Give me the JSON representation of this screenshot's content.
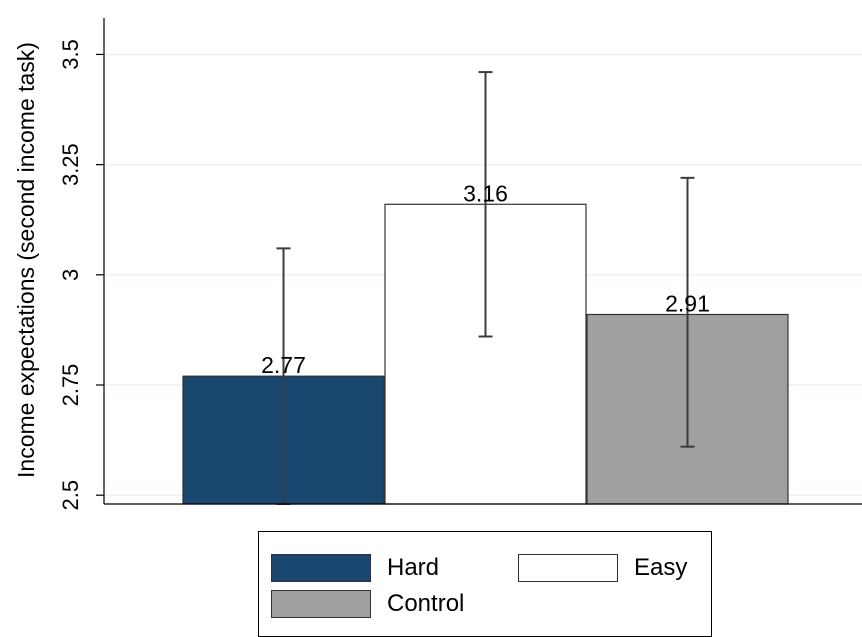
{
  "chart_data": {
    "type": "bar",
    "title": "",
    "xlabel": "",
    "ylabel": "Income expectations (second income task)",
    "ylim": [
      2.48,
      3.56
    ],
    "yticks": [
      2.5,
      2.75,
      3,
      3.25,
      3.5
    ],
    "ytick_labels": [
      "2.5",
      "2.75",
      "3",
      "3.25",
      "3.5"
    ],
    "grid": true,
    "legend_position": "bottom",
    "categories": [
      "Hard",
      "Easy",
      "Control"
    ],
    "values": [
      2.77,
      3.16,
      2.91
    ],
    "data_labels": [
      "2.77",
      "3.16",
      "2.91"
    ],
    "error_bars": [
      {
        "low": 2.48,
        "high": 3.06
      },
      {
        "low": 2.86,
        "high": 3.46
      },
      {
        "low": 2.61,
        "high": 3.22
      }
    ],
    "colors": [
      "#1a476f",
      "#ffffff",
      "#a0a0a0"
    ],
    "series": [
      {
        "name": "Hard",
        "color": "#1a476f"
      },
      {
        "name": "Easy",
        "color": "#ffffff"
      },
      {
        "name": "Control",
        "color": "#a0a0a0"
      }
    ]
  }
}
